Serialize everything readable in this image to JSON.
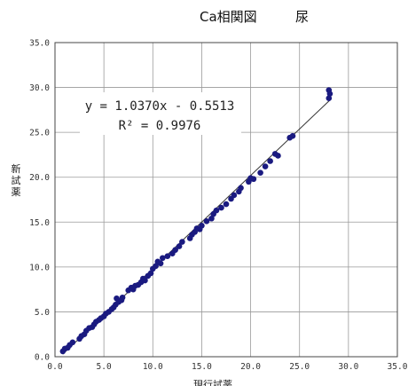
{
  "chart_data": {
    "type": "scatter",
    "title": "Ca相関図",
    "subtitle": "尿",
    "xlabel": "現行試薬",
    "ylabel": "新試薬",
    "xlim": [
      0,
      35
    ],
    "ylim": [
      0,
      35
    ],
    "x_ticks": [
      "0.0",
      "5.0",
      "10.0",
      "15.0",
      "20.0",
      "25.0",
      "30.0",
      "35.0"
    ],
    "y_ticks": [
      "0.0",
      "5.0",
      "10.0",
      "15.0",
      "20.0",
      "25.0",
      "30.0",
      "35.0"
    ],
    "grid": true,
    "equation": "y = 1.0370x - 0.5513",
    "r_squared": "R² = 0.9976",
    "trendline": {
      "slope": 1.037,
      "intercept": -0.5513,
      "x_range": [
        0.8,
        28.1
      ]
    },
    "marker_color": "#1a1a80",
    "line_color": "#333333",
    "points": [
      [
        0.8,
        0.6
      ],
      [
        1.0,
        0.9
      ],
      [
        1.3,
        1.0
      ],
      [
        1.5,
        1.3
      ],
      [
        1.8,
        1.6
      ],
      [
        2.5,
        2.0
      ],
      [
        2.7,
        2.3
      ],
      [
        3.0,
        2.5
      ],
      [
        3.2,
        2.9
      ],
      [
        3.5,
        3.2
      ],
      [
        3.8,
        3.3
      ],
      [
        4.0,
        3.6
      ],
      [
        4.2,
        3.9
      ],
      [
        4.5,
        4.1
      ],
      [
        4.7,
        4.3
      ],
      [
        5.0,
        4.5
      ],
      [
        5.2,
        4.8
      ],
      [
        5.5,
        5.0
      ],
      [
        5.8,
        5.3
      ],
      [
        6.0,
        5.5
      ],
      [
        6.2,
        5.8
      ],
      [
        6.5,
        6.1
      ],
      [
        6.8,
        6.3
      ],
      [
        6.3,
        6.5
      ],
      [
        6.9,
        6.6
      ],
      [
        7.5,
        7.4
      ],
      [
        7.8,
        7.7
      ],
      [
        8.0,
        7.5
      ],
      [
        8.2,
        7.9
      ],
      [
        8.5,
        8.0
      ],
      [
        8.8,
        8.3
      ],
      [
        9.0,
        8.7
      ],
      [
        9.2,
        8.5
      ],
      [
        9.5,
        9.0
      ],
      [
        9.8,
        9.3
      ],
      [
        10.0,
        9.8
      ],
      [
        10.3,
        10.1
      ],
      [
        10.5,
        10.6
      ],
      [
        10.8,
        10.4
      ],
      [
        11.0,
        11.0
      ],
      [
        11.5,
        11.2
      ],
      [
        12.0,
        11.5
      ],
      [
        12.3,
        11.9
      ],
      [
        12.7,
        12.3
      ],
      [
        13.0,
        12.8
      ],
      [
        13.8,
        13.2
      ],
      [
        14.0,
        13.6
      ],
      [
        14.3,
        13.9
      ],
      [
        14.5,
        14.3
      ],
      [
        14.8,
        14.2
      ],
      [
        15.0,
        14.6
      ],
      [
        15.5,
        15.1
      ],
      [
        16.0,
        15.4
      ],
      [
        16.2,
        15.9
      ],
      [
        16.5,
        16.3
      ],
      [
        17.0,
        16.6
      ],
      [
        17.5,
        17.0
      ],
      [
        18.0,
        17.6
      ],
      [
        18.3,
        18.0
      ],
      [
        18.8,
        18.4
      ],
      [
        19.0,
        18.8
      ],
      [
        19.8,
        19.5
      ],
      [
        20.0,
        19.9
      ],
      [
        20.3,
        19.8
      ],
      [
        21.0,
        20.5
      ],
      [
        21.5,
        21.2
      ],
      [
        22.0,
        21.8
      ],
      [
        22.5,
        22.6
      ],
      [
        22.8,
        22.4
      ],
      [
        24.0,
        24.4
      ],
      [
        24.3,
        24.6
      ],
      [
        28.0,
        28.8
      ],
      [
        28.1,
        29.3
      ],
      [
        28.0,
        29.7
      ]
    ]
  }
}
